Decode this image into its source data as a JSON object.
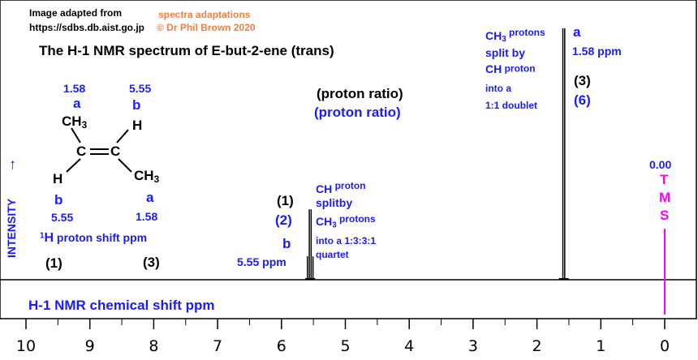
{
  "credit": {
    "line1": "Image adapted from",
    "line2": "https://sdbs.db.aist.go.jp",
    "adapt1": "spectra adaptations",
    "adapt2": "© Dr Phil Brown 2020"
  },
  "title": "The H-1 NMR spectrum of  E-but-2-ene  (trans)",
  "proton_ratio_1": "(proton ratio)",
  "proton_ratio_2": "(proton ratio)",
  "ylabel": "INTENSITY",
  "ylabel_arrow": "→",
  "xlabel": "H-1 NMR chemical shift  ppm",
  "molecule": {
    "shift_a_top": "1.58",
    "shift_b_top": "5.55",
    "label_a_top": "a",
    "label_b_top": "b",
    "ch3_top": "CH",
    "ch3_top_sub": "3",
    "h_top": "H",
    "c_left": "C",
    "c_right": "C",
    "h_bottom": "H",
    "ch3_bottom": "CH",
    "ch3_bottom_sub": "3",
    "label_b_bottom": "b",
    "label_a_bottom": "a",
    "shift_b_bottom": "5.55",
    "shift_a_bottom": "1.58",
    "shift_caption_sup": "1",
    "shift_caption_h": "H",
    "shift_caption_rest": " proton shift  ppm",
    "ratio_b": "(1)",
    "ratio_a": "(3)"
  },
  "peak_b": {
    "ratio_black": "(1)",
    "ratio_blue": "(2)",
    "label": "b",
    "shift": "5.55 ppm",
    "desc_ch": "CH",
    "desc_proton": " proton",
    "desc_split": "split",
    "desc_by": "by",
    "desc_ch3": "CH",
    "desc_ch3_sub": "3",
    "desc_protons": " protons",
    "desc_into": "into a 1:3:3:1",
    "desc_quartet": "quartet"
  },
  "peak_a": {
    "desc_ch3": "CH",
    "desc_ch3_sub": "3",
    "desc_protons": " protons",
    "desc_split": "split by",
    "desc_ch": "CH",
    "desc_proton": " proton",
    "desc_into": "into a",
    "desc_doublet": "1:1 doublet",
    "label": "a",
    "shift": "1.58  ppm",
    "ratio_black": "(3)",
    "ratio_blue": "(6)"
  },
  "tms": {
    "shift": "0.00",
    "letters": [
      "T",
      "M",
      "S"
    ]
  },
  "colors": {
    "annotation_blue": "#1a1aff",
    "credit_orange": "#f08040",
    "tms_magenta": "#ff00ff",
    "spectrum": "#000000"
  },
  "chart_data": {
    "type": "line",
    "title": "The H-1 NMR spectrum of  E-but-2-ene  (trans)",
    "xlabel": "H-1 NMR chemical shift  ppm",
    "ylabel": "INTENSITY",
    "xlim": [
      10,
      -0.5
    ],
    "x_reversed": true,
    "ticks": [
      10,
      9,
      8,
      7,
      6,
      5,
      4,
      3,
      2,
      1,
      0
    ],
    "tick_labels": [
      "10",
      "9",
      "8",
      "7",
      "6",
      "5",
      "4",
      "3",
      "2",
      "1",
      "0"
    ],
    "peaks": [
      {
        "label": "b",
        "shift": 5.55,
        "multiplicity": "quartet",
        "pattern": [
          1,
          3,
          3,
          1
        ],
        "relative_height": 0.28,
        "proton_ratio": 1
      },
      {
        "label": "a",
        "shift": 1.58,
        "multiplicity": "doublet",
        "pattern": [
          1,
          1
        ],
        "relative_height": 1.0,
        "proton_ratio": 3
      },
      {
        "label": "TMS",
        "shift": 0.0,
        "multiplicity": "reference",
        "pattern": [
          1
        ],
        "relative_height": 0.0,
        "proton_ratio": null
      }
    ]
  }
}
